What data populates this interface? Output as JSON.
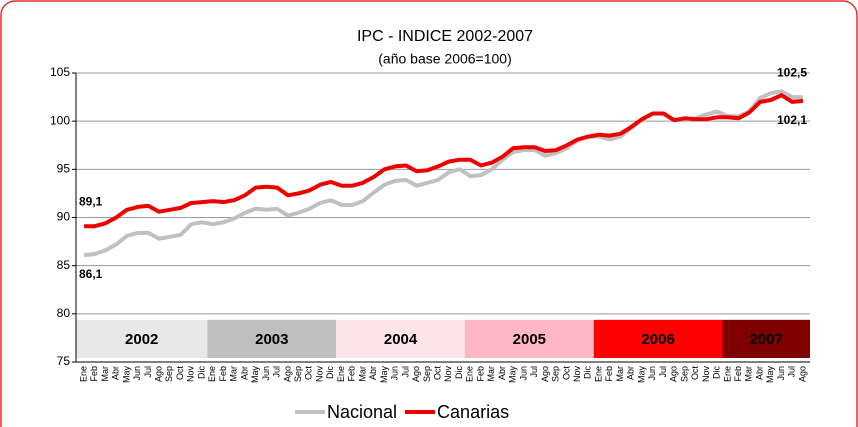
{
  "chart_data": {
    "type": "line",
    "title": "IPC - INDICE 2002-2007",
    "subtitle": "(año base 2006=100)",
    "categories": [
      "Ene",
      "Feb",
      "Mar",
      "Abr",
      "May",
      "Jun",
      "Jul",
      "Ago",
      "Sep",
      "Oct",
      "Nov",
      "Dic",
      "Ene",
      "Feb",
      "Mar",
      "Abr",
      "May",
      "Jun",
      "Jul",
      "Ago",
      "Sep",
      "Oct",
      "Nov",
      "Dic",
      "Ene",
      "Feb",
      "Mar",
      "Abr",
      "May",
      "Jun",
      "Jul",
      "Ago",
      "Sep",
      "Oct",
      "Nov",
      "Dic",
      "Ene",
      "Feb",
      "Mar",
      "Abr",
      "May",
      "Jun",
      "Jul",
      "Ago",
      "Sep",
      "Oct",
      "Nov",
      "Dic",
      "Ene",
      "Feb",
      "Mar",
      "Abr",
      "May",
      "Jun",
      "Jul",
      "Ago",
      "Sep",
      "Oct",
      "Nov",
      "Dic",
      "Ene",
      "Feb",
      "Mar",
      "Abr",
      "May",
      "Jun",
      "Jul",
      "Ago"
    ],
    "years": [
      {
        "label": "2002",
        "color": "#e8e8e8",
        "text_color": "#000000"
      },
      {
        "label": "2003",
        "color": "#bfbfbf",
        "text_color": "#000000"
      },
      {
        "label": "2004",
        "color": "#ffe3ea",
        "text_color": "#000000"
      },
      {
        "label": "2005",
        "color": "#ffb7c3",
        "text_color": "#000000"
      },
      {
        "label": "2006",
        "color": "#ff0000",
        "text_color": "#a00000"
      },
      {
        "label": "2007",
        "color": "#7f0000",
        "text_color": "#ffffff"
      }
    ],
    "series": [
      {
        "name": "Nacional",
        "color": "#c0c0c0",
        "values": [
          86.1,
          86.2,
          86.6,
          87.2,
          88.1,
          88.4,
          88.4,
          87.8,
          88.0,
          88.2,
          89.3,
          89.5,
          89.3,
          89.5,
          89.9,
          90.5,
          90.9,
          90.8,
          90.9,
          90.2,
          90.5,
          90.9,
          91.5,
          91.8,
          91.3,
          91.3,
          91.7,
          92.6,
          93.4,
          93.8,
          93.9,
          93.3,
          93.6,
          93.9,
          94.7,
          95.0,
          94.3,
          94.4,
          95.0,
          96.0,
          96.8,
          97.0,
          97.0,
          96.4,
          96.7,
          97.2,
          98.0,
          98.4,
          98.4,
          98.1,
          98.4,
          99.3,
          100.2,
          100.8,
          100.8,
          100.1,
          100.1,
          100.3,
          100.7,
          101.0,
          100.5,
          100.5,
          101.0,
          102.4,
          102.9,
          103.1,
          102.5,
          102.5
        ],
        "value_labels": [
          "86,1",
          null,
          null,
          null,
          null,
          null,
          null,
          null,
          null,
          null,
          null,
          null,
          null,
          null,
          null,
          null,
          null,
          null,
          null,
          null,
          null,
          null,
          null,
          null,
          null,
          null,
          null,
          null,
          null,
          null,
          null,
          null,
          null,
          null,
          null,
          null,
          null,
          null,
          null,
          null,
          null,
          null,
          null,
          null,
          null,
          null,
          null,
          null,
          null,
          null,
          null,
          null,
          null,
          null,
          null,
          null,
          null,
          null,
          null,
          null,
          null,
          null,
          null,
          null,
          null,
          null,
          null,
          "102,5"
        ]
      },
      {
        "name": "Canarias",
        "color": "#ee0000",
        "values": [
          89.1,
          89.1,
          89.4,
          90.0,
          90.8,
          91.1,
          91.2,
          90.6,
          90.8,
          91.0,
          91.5,
          91.6,
          91.7,
          91.6,
          91.8,
          92.3,
          93.1,
          93.2,
          93.1,
          92.3,
          92.5,
          92.8,
          93.4,
          93.7,
          93.3,
          93.3,
          93.6,
          94.2,
          95.0,
          95.3,
          95.4,
          94.8,
          94.9,
          95.3,
          95.8,
          96.0,
          96.0,
          95.4,
          95.7,
          96.3,
          97.2,
          97.3,
          97.3,
          96.9,
          97.0,
          97.5,
          98.1,
          98.4,
          98.6,
          98.5,
          98.7,
          99.4,
          100.2,
          100.8,
          100.8,
          100.1,
          100.3,
          100.2,
          100.2,
          100.4,
          100.4,
          100.3,
          100.9,
          102.0,
          102.2,
          102.7,
          102.0,
          102.1
        ],
        "value_labels": [
          "89,1",
          null,
          null,
          null,
          null,
          null,
          null,
          null,
          null,
          null,
          null,
          null,
          null,
          null,
          null,
          null,
          null,
          null,
          null,
          null,
          null,
          null,
          null,
          null,
          null,
          null,
          null,
          null,
          null,
          null,
          null,
          null,
          null,
          null,
          null,
          null,
          null,
          null,
          null,
          null,
          null,
          null,
          null,
          null,
          null,
          null,
          null,
          null,
          null,
          null,
          null,
          null,
          null,
          null,
          null,
          null,
          null,
          null,
          null,
          null,
          null,
          null,
          null,
          null,
          null,
          null,
          null,
          "102,1"
        ]
      }
    ],
    "ylim": [
      75,
      105
    ],
    "yticks": [
      75,
      80,
      85,
      90,
      95,
      100,
      105
    ],
    "grid": true,
    "legend": "bottom"
  }
}
